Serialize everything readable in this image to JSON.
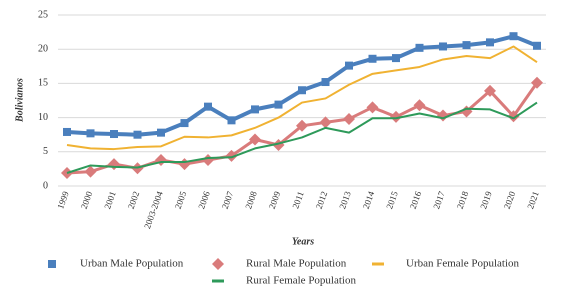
{
  "chart_data": {
    "type": "line",
    "y_label": "Bolivianos",
    "x_label": "Years",
    "categories": [
      "1999",
      "2000",
      "2001",
      "2002",
      "2003-2004",
      "2005",
      "2006",
      "2007",
      "2008",
      "2009",
      "2011",
      "2012",
      "2013",
      "2014",
      "2015",
      "2016",
      "2017",
      "2018",
      "2019",
      "2020",
      "2021"
    ],
    "ylim": [
      0,
      25
    ],
    "yticks": [
      0,
      5,
      10,
      15,
      20,
      25
    ],
    "grid": true,
    "series": [
      {
        "name": "Urban Male Population",
        "color": "#4a7fbd",
        "marker": "square",
        "values": [
          7.9,
          7.7,
          7.6,
          7.5,
          7.8,
          9.2,
          11.6,
          9.6,
          11.2,
          11.9,
          14.0,
          15.2,
          17.6,
          18.6,
          18.7,
          20.2,
          20.4,
          20.6,
          21.0,
          21.9,
          20.5
        ]
      },
      {
        "name": "Rural Male Population",
        "color": "#d97b7b",
        "marker": "diamond",
        "values": [
          1.9,
          2.1,
          3.2,
          2.6,
          3.8,
          3.2,
          3.8,
          4.4,
          6.8,
          6.0,
          8.8,
          9.3,
          9.8,
          11.5,
          10.1,
          11.8,
          10.3,
          10.9,
          13.9,
          10.2,
          15.1
        ]
      },
      {
        "name": "Urban Female Population",
        "color": "#f0b232",
        "marker": "none",
        "values": [
          6.0,
          5.5,
          5.4,
          5.7,
          5.8,
          7.2,
          7.1,
          7.4,
          8.5,
          10.0,
          12.2,
          12.8,
          14.8,
          16.4,
          16.9,
          17.4,
          18.5,
          19.0,
          18.7,
          20.4,
          18.1
        ]
      },
      {
        "name": "Rural Female Population",
        "color": "#2e9a5a",
        "marker": "none",
        "values": [
          1.9,
          3.0,
          2.8,
          2.7,
          3.5,
          3.5,
          4.1,
          4.2,
          5.5,
          6.2,
          7.1,
          8.5,
          7.8,
          9.9,
          9.9,
          10.6,
          9.9,
          11.3,
          11.2,
          9.9,
          12.2
        ]
      }
    ]
  }
}
